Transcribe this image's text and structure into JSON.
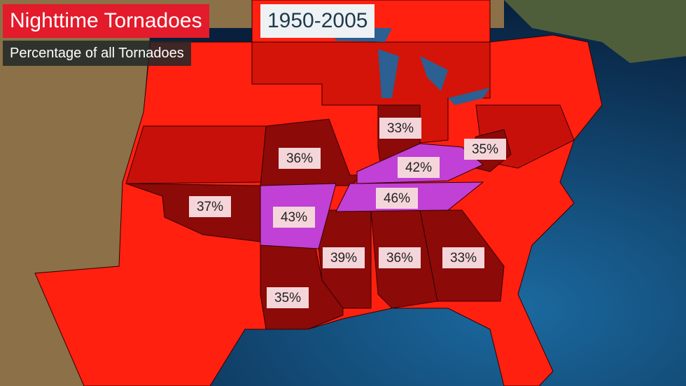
{
  "title": "Nighttime Tornadoes",
  "years": "1950-2005",
  "subtitle": "Percentage of all Tornadoes",
  "labels": [
    "33%",
    "36%",
    "42%",
    "35%",
    "37%",
    "43%",
    "46%",
    "39%",
    "36%",
    "33%",
    "35%"
  ]
}
